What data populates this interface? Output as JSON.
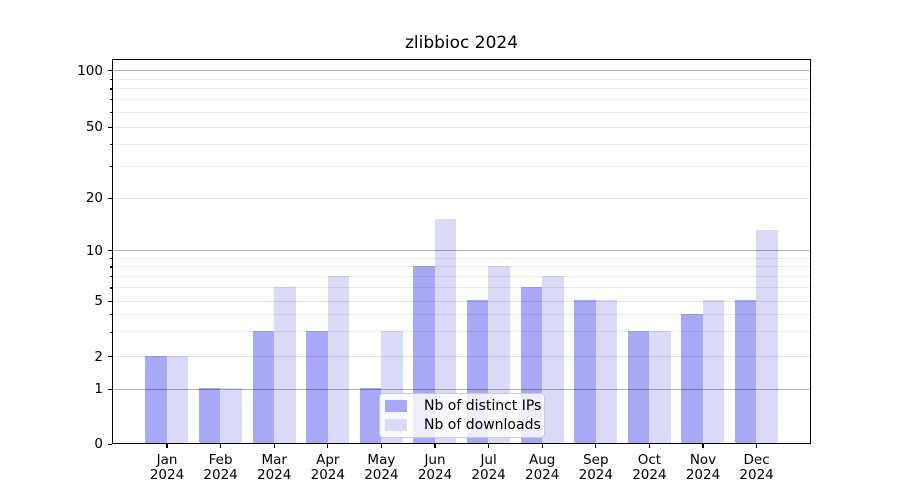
{
  "chart_data": {
    "type": "bar",
    "title": "zlibbioc 2024",
    "categories": [
      "Jan",
      "Feb",
      "Mar",
      "Apr",
      "May",
      "Jun",
      "Jul",
      "Aug",
      "Sep",
      "Oct",
      "Nov",
      "Dec"
    ],
    "year_label": "2024",
    "series": [
      {
        "name": "Nb of distinct IPs",
        "color": "#a8a8f6",
        "values": [
          2,
          1,
          3,
          3,
          1,
          8,
          5,
          6,
          5,
          3,
          4,
          5
        ]
      },
      {
        "name": "Nb of downloads",
        "color": "#dadaf8",
        "values": [
          2,
          1,
          6,
          7,
          3,
          15,
          8,
          7,
          5,
          3,
          5,
          13
        ]
      }
    ],
    "xlabel": "",
    "ylabel": "",
    "yscale": "log-like",
    "ylim": [
      0,
      100
    ],
    "yticks": [
      0,
      1,
      2,
      5,
      10,
      20,
      50,
      100
    ],
    "decade_ticks": [
      1,
      10,
      100
    ],
    "light_major_ticks": [
      2,
      5,
      20,
      50
    ],
    "minor_ticks": [
      3,
      4,
      6,
      7,
      8,
      9,
      30,
      40,
      60,
      70,
      80,
      90
    ],
    "grid": "on",
    "legend_position": "inside bottom-center"
  },
  "colors": {
    "grid_decade": "#b3b3b3",
    "grid_minor": "#e8e8e8",
    "axis_spine": "#000000",
    "background": "#ffffff"
  }
}
